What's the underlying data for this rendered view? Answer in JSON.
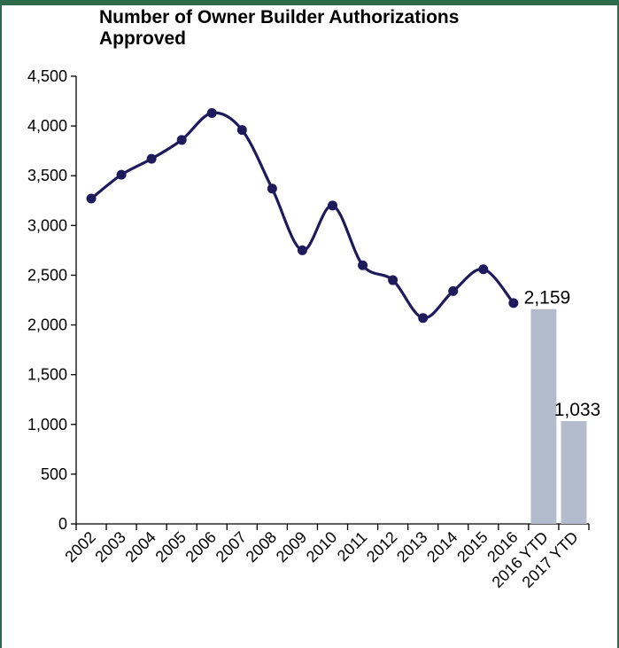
{
  "chart_data": {
    "type": "line",
    "title": "Number of Owner Builder Authorizations Approved",
    "xlabel": "",
    "ylabel": "",
    "ylim": [
      0,
      4500
    ],
    "yticks": [
      0,
      500,
      1000,
      1500,
      2000,
      2500,
      3000,
      3500,
      4000,
      4500
    ],
    "ytick_labels": [
      "0",
      "500",
      "1,000",
      "1,500",
      "2,000",
      "2,500",
      "3,000",
      "3,500",
      "4,000",
      "4,500"
    ],
    "categories": [
      "2002",
      "2003",
      "2004",
      "2005",
      "2006",
      "2007",
      "2008",
      "2009",
      "2010",
      "2011",
      "2012",
      "2013",
      "2014",
      "2015",
      "2016",
      "2016 YTD",
      "2017 YTD"
    ],
    "line_series": {
      "categories": [
        "2002",
        "2003",
        "2004",
        "2005",
        "2006",
        "2007",
        "2008",
        "2009",
        "2010",
        "2011",
        "2012",
        "2013",
        "2014",
        "2015",
        "2016"
      ],
      "values": [
        3270,
        3510,
        3670,
        3860,
        4130,
        3960,
        3370,
        2750,
        3200,
        2600,
        2450,
        2070,
        2340,
        2560,
        2220
      ],
      "color": "#1f1a5c"
    },
    "bar_series": {
      "categories": [
        "2016 YTD",
        "2017 YTD"
      ],
      "values": [
        2159,
        1033
      ],
      "data_labels": [
        "2,159",
        "1,033"
      ],
      "color": "#b2bccd"
    },
    "grid": false,
    "legend": "none"
  }
}
